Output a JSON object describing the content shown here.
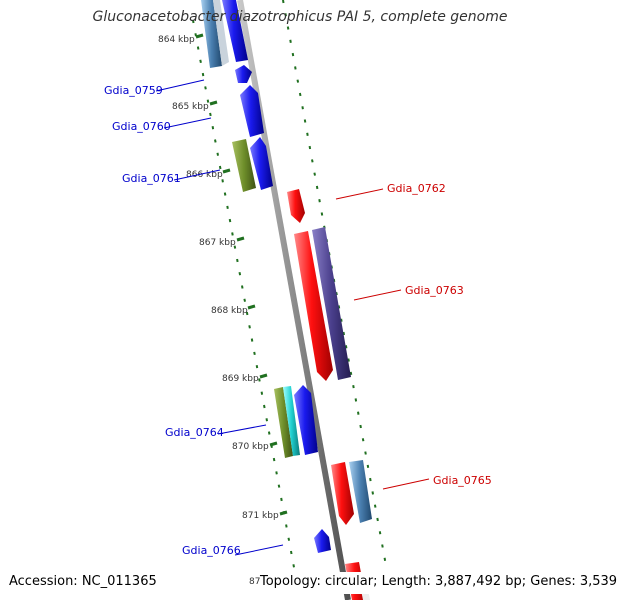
{
  "title": "Gluconacetobacter diazotrophicus PAI 5, complete genome",
  "footer": {
    "accession": "Accession: NC_011365",
    "topology": "Topology: circular; Length: 3,887,492 bp; Genes: 3,539",
    "cut_tick_label": "87"
  },
  "ticks": [
    "864 kbp",
    "865 kbp",
    "866 kbp",
    "867 kbp",
    "868 kbp",
    "869 kbp",
    "870 kbp",
    "871 kbp"
  ],
  "gene_labels": [
    {
      "text": "Gdia_0759",
      "strand": "forward",
      "color": "#0000cc"
    },
    {
      "text": "Gdia_0760",
      "strand": "forward",
      "color": "#0000cc"
    },
    {
      "text": "Gdia_0761",
      "strand": "forward",
      "color": "#0000cc"
    },
    {
      "text": "Gdia_0762",
      "strand": "reverse",
      "color": "#cc0000"
    },
    {
      "text": "Gdia_0763",
      "strand": "reverse",
      "color": "#cc0000"
    },
    {
      "text": "Gdia_0764",
      "strand": "forward",
      "color": "#0000cc"
    },
    {
      "text": "Gdia_0765",
      "strand": "reverse",
      "color": "#cc0000"
    },
    {
      "text": "Gdia_0766",
      "strand": "forward",
      "color": "#0000cc"
    }
  ],
  "colors": {
    "backbone": "#8c8c8c",
    "tick_dash": "#207020",
    "forward_gene": "#1010ee",
    "reverse_gene": "#ee1010",
    "olive_feature": "#6e8e2a",
    "cyan_feature": "#20d0d0",
    "purple_feature": "#4a3f8c",
    "steel_feature": "#4a7fb0"
  }
}
